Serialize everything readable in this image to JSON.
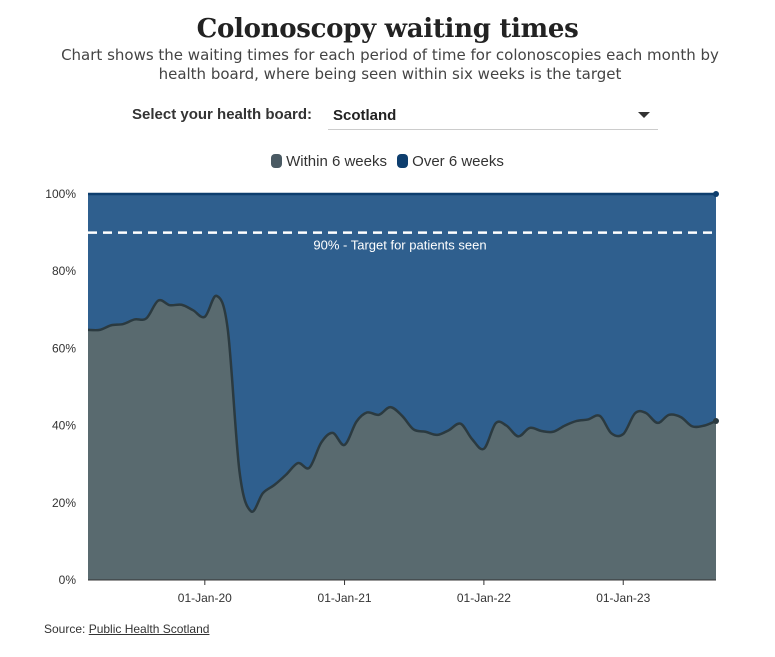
{
  "header": {
    "title": "Colonoscopy waiting times",
    "subtitle": "Chart shows the waiting times for each period of time for colonoscopies each month by health board, where being seen within six weeks is the target"
  },
  "selector": {
    "label": "Select your health board:",
    "value": "Scotland"
  },
  "legend": {
    "items": [
      {
        "label": "Within 6 weeks",
        "color": "#4a5a63"
      },
      {
        "label": "Over 6 weeks",
        "color": "#0e3e6e"
      }
    ]
  },
  "source": {
    "prefix": "Source: ",
    "link_text": "Public Health Scotland"
  },
  "chart_data": {
    "type": "area",
    "stacked": true,
    "percent": true,
    "ylim": [
      0,
      100
    ],
    "yticks": [
      0,
      20,
      40,
      60,
      80,
      100
    ],
    "ytick_labels": [
      "0%",
      "20%",
      "40%",
      "60%",
      "80%",
      "100%"
    ],
    "xticks": [
      "2020-01-01",
      "2021-01-01",
      "2022-01-01",
      "2023-01-01"
    ],
    "xtick_labels": [
      "01-Jan-20",
      "01-Jan-21",
      "01-Jan-22",
      "01-Jan-23"
    ],
    "grid": "horizontal",
    "legend_position": "top",
    "colors": {
      "within": "#596a6f",
      "within_line": "#2b3a40",
      "over": "#2f5f8e",
      "over_line": "#0e3e6e",
      "target": "#ffffff"
    },
    "target": {
      "value": 90,
      "label": "90% - Target for patients seen"
    },
    "x": [
      "2019-03-01",
      "2019-04-01",
      "2019-05-01",
      "2019-06-01",
      "2019-07-01",
      "2019-08-01",
      "2019-09-01",
      "2019-10-01",
      "2019-11-01",
      "2019-12-01",
      "2020-01-01",
      "2020-02-01",
      "2020-03-01",
      "2020-04-01",
      "2020-05-01",
      "2020-06-01",
      "2020-07-01",
      "2020-08-01",
      "2020-09-01",
      "2020-10-01",
      "2020-11-01",
      "2020-12-01",
      "2021-01-01",
      "2021-02-01",
      "2021-03-01",
      "2021-04-01",
      "2021-05-01",
      "2021-06-01",
      "2021-07-01",
      "2021-08-01",
      "2021-09-01",
      "2021-10-01",
      "2021-11-01",
      "2021-12-01",
      "2022-01-01",
      "2022-02-01",
      "2022-03-01",
      "2022-04-01",
      "2022-05-01",
      "2022-06-01",
      "2022-07-01",
      "2022-08-01",
      "2022-09-01",
      "2022-10-01",
      "2022-11-01",
      "2022-12-01",
      "2023-01-01",
      "2023-02-01",
      "2023-03-01",
      "2023-04-01",
      "2023-05-01",
      "2023-06-01",
      "2023-07-01",
      "2023-08-01",
      "2023-09-01"
    ],
    "series": [
      {
        "name": "Within 6 weeks",
        "values": [
          64.8,
          64.8,
          66.0,
          66.3,
          67.5,
          67.8,
          72.4,
          71.2,
          71.3,
          69.9,
          68.2,
          73.6,
          65.0,
          28.0,
          17.8,
          22.5,
          24.6,
          27.3,
          30.3,
          29.1,
          35.6,
          38.1,
          35.0,
          41.0,
          43.4,
          42.8,
          44.8,
          42.5,
          39.0,
          38.4,
          37.6,
          38.8,
          40.5,
          36.5,
          34.0,
          40.6,
          40.0,
          37.2,
          39.4,
          38.6,
          38.4,
          40.0,
          41.2,
          41.6,
          42.5,
          38.0,
          37.8,
          43.2,
          43.3,
          40.7,
          42.8,
          42.2,
          39.8,
          40.0,
          41.2
        ]
      },
      {
        "name": "Over 6 weeks",
        "values": [
          35.2,
          35.2,
          34.0,
          33.7,
          32.5,
          32.2,
          27.6,
          28.8,
          28.7,
          30.1,
          31.8,
          26.4,
          35.0,
          72.0,
          82.2,
          77.5,
          75.4,
          72.7,
          69.7,
          70.9,
          64.4,
          61.9,
          65.0,
          59.0,
          56.6,
          57.2,
          55.2,
          57.5,
          61.0,
          61.6,
          62.4,
          61.2,
          59.5,
          63.5,
          66.0,
          59.4,
          60.0,
          62.8,
          60.6,
          61.4,
          61.6,
          60.0,
          58.8,
          58.4,
          57.5,
          62.0,
          62.2,
          56.8,
          56.7,
          59.3,
          57.2,
          57.8,
          60.2,
          60.0,
          58.8
        ]
      }
    ]
  }
}
